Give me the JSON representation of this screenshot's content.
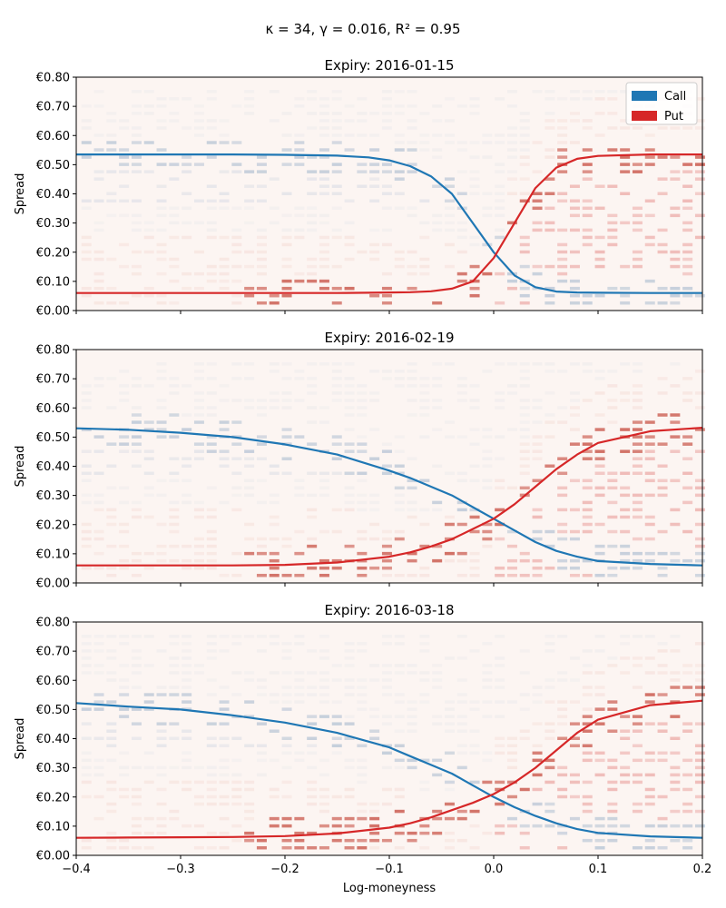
{
  "suptitle": "κ = 34, γ = 0.016, R² = 0.95",
  "legend": [
    {
      "label": "Call",
      "color": "#1f77b4"
    },
    {
      "label": "Put",
      "color": "#d62728"
    }
  ],
  "colors": {
    "call": "#1f77b4",
    "put": "#d62728",
    "heat_base": "#fcf5f2"
  },
  "chart_data": [
    {
      "type": "line",
      "title": "Expiry: 2016-01-15",
      "xlabel": "",
      "ylabel": "Spread",
      "xlim": [
        -0.4,
        0.2
      ],
      "ylim": [
        0,
        0.8
      ],
      "y_ticks": [
        "€0.00",
        "€0.10",
        "€0.20",
        "€0.30",
        "€0.40",
        "€0.50",
        "€0.60",
        "€0.70",
        "€0.80"
      ],
      "x_ticks": [],
      "legend_position": "top-right",
      "series": [
        {
          "name": "Call",
          "x": [
            -0.4,
            -0.35,
            -0.3,
            -0.25,
            -0.2,
            -0.15,
            -0.12,
            -0.1,
            -0.08,
            -0.06,
            -0.04,
            -0.02,
            0,
            0.02,
            0.04,
            0.06,
            0.08,
            0.1,
            0.15,
            0.2
          ],
          "y": [
            0.535,
            0.535,
            0.535,
            0.535,
            0.534,
            0.531,
            0.525,
            0.515,
            0.495,
            0.46,
            0.4,
            0.3,
            0.2,
            0.12,
            0.08,
            0.065,
            0.062,
            0.061,
            0.06,
            0.06
          ]
        },
        {
          "name": "Put",
          "x": [
            -0.4,
            -0.35,
            -0.3,
            -0.25,
            -0.2,
            -0.15,
            -0.12,
            -0.1,
            -0.08,
            -0.06,
            -0.04,
            -0.02,
            0,
            0.02,
            0.04,
            0.06,
            0.08,
            0.1,
            0.15,
            0.2
          ],
          "y": [
            0.06,
            0.06,
            0.06,
            0.06,
            0.06,
            0.06,
            0.061,
            0.062,
            0.063,
            0.066,
            0.075,
            0.1,
            0.18,
            0.3,
            0.42,
            0.49,
            0.52,
            0.53,
            0.535,
            0.535
          ]
        }
      ]
    },
    {
      "type": "line",
      "title": "Expiry: 2016-02-19",
      "xlabel": "",
      "ylabel": "Spread",
      "xlim": [
        -0.4,
        0.2
      ],
      "ylim": [
        0,
        0.8
      ],
      "y_ticks": [
        "€0.00",
        "€0.10",
        "€0.20",
        "€0.30",
        "€0.40",
        "€0.50",
        "€0.60",
        "€0.70",
        "€0.80"
      ],
      "x_ticks": [],
      "series": [
        {
          "name": "Call",
          "x": [
            -0.4,
            -0.35,
            -0.3,
            -0.25,
            -0.2,
            -0.15,
            -0.1,
            -0.08,
            -0.06,
            -0.04,
            -0.02,
            0,
            0.02,
            0.04,
            0.06,
            0.08,
            0.1,
            0.15,
            0.2
          ],
          "y": [
            0.53,
            0.525,
            0.515,
            0.5,
            0.475,
            0.44,
            0.385,
            0.36,
            0.33,
            0.3,
            0.26,
            0.22,
            0.18,
            0.14,
            0.11,
            0.09,
            0.075,
            0.065,
            0.06
          ]
        },
        {
          "name": "Put",
          "x": [
            -0.4,
            -0.35,
            -0.3,
            -0.25,
            -0.2,
            -0.15,
            -0.1,
            -0.08,
            -0.06,
            -0.04,
            -0.02,
            0,
            0.02,
            0.04,
            0.06,
            0.08,
            0.1,
            0.15,
            0.2
          ],
          "y": [
            0.06,
            0.06,
            0.06,
            0.06,
            0.062,
            0.07,
            0.09,
            0.105,
            0.125,
            0.15,
            0.185,
            0.22,
            0.27,
            0.33,
            0.39,
            0.44,
            0.48,
            0.52,
            0.532
          ]
        }
      ]
    },
    {
      "type": "line",
      "title": "Expiry: 2016-03-18",
      "xlabel": "Log-moneyness",
      "ylabel": "Spread",
      "xlim": [
        -0.4,
        0.2
      ],
      "ylim": [
        0,
        0.8
      ],
      "y_ticks": [
        "€0.00",
        "€0.10",
        "€0.20",
        "€0.30",
        "€0.40",
        "€0.50",
        "€0.60",
        "€0.70",
        "€0.80"
      ],
      "x_ticks": [
        "−0.4",
        "−0.3",
        "−0.2",
        "−0.1",
        "0.0",
        "0.1",
        "0.2"
      ],
      "series": [
        {
          "name": "Call",
          "x": [
            -0.4,
            -0.35,
            -0.3,
            -0.25,
            -0.2,
            -0.15,
            -0.1,
            -0.08,
            -0.06,
            -0.04,
            -0.02,
            0,
            0.02,
            0.04,
            0.06,
            0.08,
            0.1,
            0.15,
            0.2
          ],
          "y": [
            0.522,
            0.51,
            0.5,
            0.48,
            0.455,
            0.42,
            0.37,
            0.34,
            0.31,
            0.28,
            0.24,
            0.2,
            0.165,
            0.135,
            0.11,
            0.09,
            0.077,
            0.065,
            0.06
          ]
        },
        {
          "name": "Put",
          "x": [
            -0.4,
            -0.35,
            -0.3,
            -0.25,
            -0.2,
            -0.15,
            -0.1,
            -0.08,
            -0.06,
            -0.04,
            -0.02,
            0,
            0.02,
            0.04,
            0.06,
            0.08,
            0.1,
            0.15,
            0.2
          ],
          "y": [
            0.06,
            0.061,
            0.062,
            0.063,
            0.066,
            0.075,
            0.095,
            0.11,
            0.13,
            0.155,
            0.18,
            0.21,
            0.25,
            0.3,
            0.36,
            0.42,
            0.465,
            0.515,
            0.53
          ]
        }
      ]
    }
  ]
}
